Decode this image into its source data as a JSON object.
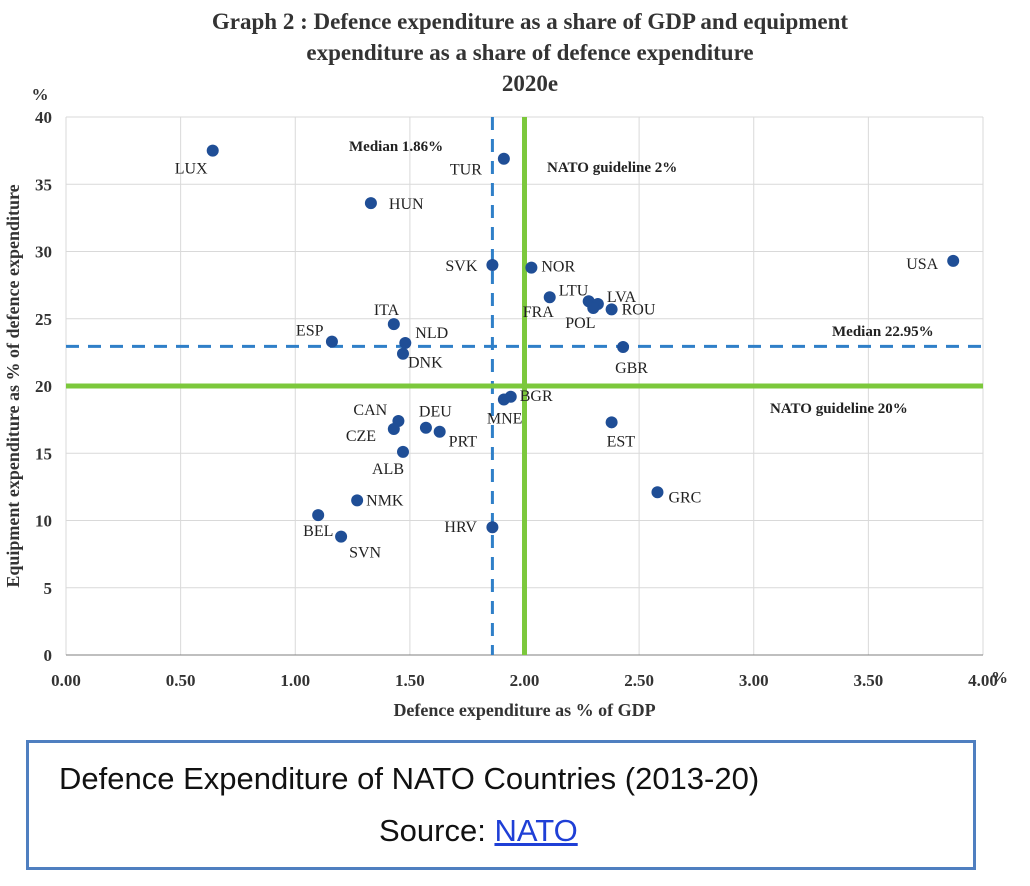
{
  "chart_data": {
    "type": "scatter",
    "title": "Graph 2 : Defence expenditure as a share of GDP and equipment expenditure as a share of defence expenditure",
    "title_lines": [
      "Graph 2 : Defence expenditure as a share of GDP and equipment",
      "expenditure as a share of defence expenditure",
      "2020e"
    ],
    "xlabel": "Defence expenditure as % of GDP",
    "ylabel": "Equipment expenditure as % of defence expenditure",
    "x_unit": "%",
    "y_unit": "%",
    "xlim": [
      0,
      4
    ],
    "ylim": [
      0,
      40
    ],
    "x_ticks": [
      "0.00",
      "0.50",
      "1.00",
      "1.50",
      "2.00",
      "2.50",
      "3.00",
      "3.50",
      "4.00"
    ],
    "y_ticks": [
      "0",
      "5",
      "10",
      "15",
      "20",
      "25",
      "30",
      "35",
      "40"
    ],
    "grid": true,
    "marker_color": "#1f4e96",
    "points": [
      {
        "label": "LUX",
        "x": 0.64,
        "y": 37.5
      },
      {
        "label": "HUN",
        "x": 1.33,
        "y": 33.6
      },
      {
        "label": "TUR",
        "x": 1.91,
        "y": 36.9
      },
      {
        "label": "SVK",
        "x": 1.86,
        "y": 29.0
      },
      {
        "label": "NOR",
        "x": 2.03,
        "y": 28.8
      },
      {
        "label": "USA",
        "x": 3.87,
        "y": 29.3
      },
      {
        "label": "LTU",
        "x": 2.28,
        "y": 26.3
      },
      {
        "label": "LVA",
        "x": 2.32,
        "y": 26.1
      },
      {
        "label": "FRA",
        "x": 2.11,
        "y": 26.6
      },
      {
        "label": "POL",
        "x": 2.3,
        "y": 25.8
      },
      {
        "label": "ROU",
        "x": 2.38,
        "y": 25.7
      },
      {
        "label": "ITA",
        "x": 1.43,
        "y": 24.6
      },
      {
        "label": "ESP",
        "x": 1.16,
        "y": 23.3
      },
      {
        "label": "NLD",
        "x": 1.48,
        "y": 23.2
      },
      {
        "label": "DNK",
        "x": 1.47,
        "y": 22.4
      },
      {
        "label": "GBR",
        "x": 2.43,
        "y": 22.9
      },
      {
        "label": "BGR",
        "x": 1.94,
        "y": 19.2
      },
      {
        "label": "MNE",
        "x": 1.91,
        "y": 19.0
      },
      {
        "label": "CAN",
        "x": 1.45,
        "y": 17.4
      },
      {
        "label": "DEU",
        "x": 1.57,
        "y": 16.9
      },
      {
        "label": "PRT",
        "x": 1.63,
        "y": 16.6
      },
      {
        "label": "CZE",
        "x": 1.43,
        "y": 16.8
      },
      {
        "label": "ALB",
        "x": 1.47,
        "y": 15.1
      },
      {
        "label": "EST",
        "x": 2.38,
        "y": 17.3
      },
      {
        "label": "GRC",
        "x": 2.58,
        "y": 12.1
      },
      {
        "label": "NMK",
        "x": 1.27,
        "y": 11.5
      },
      {
        "label": "BEL",
        "x": 1.1,
        "y": 10.4
      },
      {
        "label": "SVN",
        "x": 1.2,
        "y": 8.8
      },
      {
        "label": "HRV",
        "x": 1.86,
        "y": 9.5
      }
    ],
    "reference_lines": [
      {
        "label": "Median 1.86%",
        "axis": "x",
        "value": 1.86,
        "style": "dashed",
        "color": "#2f7fc8"
      },
      {
        "label": "NATO guideline 2%",
        "axis": "x",
        "value": 2.0,
        "style": "solid",
        "color": "#7cc83c"
      },
      {
        "label": "Median 22.95%",
        "axis": "y",
        "value": 22.95,
        "style": "dashed",
        "color": "#2f7fc8"
      },
      {
        "label": "NATO guideline 20%",
        "axis": "y",
        "value": 20.0,
        "style": "solid",
        "color": "#7cc83c"
      }
    ]
  },
  "caption": {
    "line1": "Defence Expenditure of NATO Countries (2013-20)",
    "source_prefix": "Source: ",
    "source_link": "NATO"
  }
}
